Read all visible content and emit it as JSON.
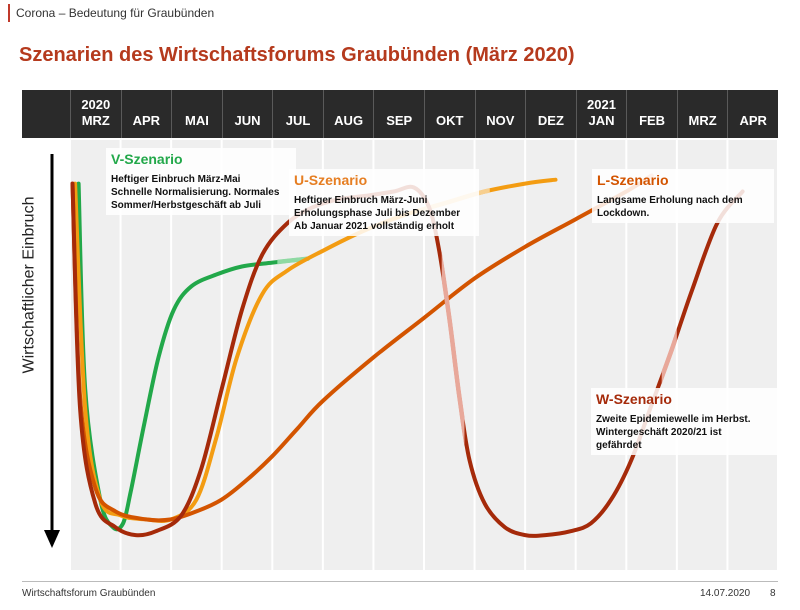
{
  "header": {
    "section": "Corona – Bedeutung für Graubünden"
  },
  "title": "Szenarien des Wirtschaftsforums Graubünden (März 2020)",
  "footer": {
    "org": "Wirtschaftsforum Graubünden",
    "date": "14.07.2020",
    "page": "8"
  },
  "chart_data": {
    "type": "line",
    "title": "Szenarien des Wirtschaftsforums Graubünden (März 2020)",
    "xlabel": "",
    "ylabel": "Wirtschaftlicher Einbruch",
    "y_direction": "down = stronger economic slump (qualitative, no numeric axis)",
    "categories": [
      {
        "year": "2020",
        "month": "MRZ"
      },
      {
        "year": "",
        "month": "APR"
      },
      {
        "year": "",
        "month": "MAI"
      },
      {
        "year": "",
        "month": "JUN"
      },
      {
        "year": "",
        "month": "JUL"
      },
      {
        "year": "",
        "month": "AUG"
      },
      {
        "year": "",
        "month": "SEP"
      },
      {
        "year": "",
        "month": "OKT"
      },
      {
        "year": "",
        "month": "NOV"
      },
      {
        "year": "",
        "month": "DEZ"
      },
      {
        "year": "2021",
        "month": "JAN"
      },
      {
        "year": "",
        "month": "FEB"
      },
      {
        "year": "",
        "month": "MRZ"
      },
      {
        "year": "",
        "month": "APR"
      }
    ],
    "grid": true,
    "series": [
      {
        "name": "V-Szenario",
        "color": "#22a84a",
        "faded_color": "#8fd9a3",
        "faded_from_x": 4.1,
        "points": [
          [
            0.17,
            8
          ],
          [
            0.3,
            60
          ],
          [
            0.6,
            88
          ],
          [
            0.85,
            95
          ],
          [
            1.05,
            94
          ],
          [
            1.2,
            86
          ],
          [
            1.45,
            70
          ],
          [
            1.75,
            52
          ],
          [
            2.05,
            40
          ],
          [
            2.4,
            34
          ],
          [
            2.9,
            31
          ],
          [
            3.4,
            29
          ],
          [
            4.0,
            28
          ],
          [
            4.7,
            27
          ]
        ]
      },
      {
        "name": "U-Szenario",
        "color": "#f39c12",
        "faded_color": "#f7cf8f",
        "faded_from_x": 6.9,
        "faded_until_x": 8.3,
        "points": [
          [
            0.1,
            8
          ],
          [
            0.3,
            65
          ],
          [
            0.6,
            88
          ],
          [
            1.0,
            92
          ],
          [
            1.5,
            93
          ],
          [
            2.0,
            93
          ],
          [
            2.5,
            88
          ],
          [
            2.9,
            72
          ],
          [
            3.3,
            52
          ],
          [
            3.8,
            36
          ],
          [
            4.3,
            30
          ],
          [
            5.0,
            25
          ],
          [
            5.8,
            20
          ],
          [
            6.6,
            16
          ],
          [
            7.4,
            13
          ],
          [
            8.2,
            10
          ],
          [
            9.0,
            8
          ],
          [
            9.6,
            7
          ]
        ]
      },
      {
        "name": "L-Szenario",
        "color": "#d35400",
        "faded_color": "#f0a27a",
        "faded_from_x": 11.35,
        "points": [
          [
            0.05,
            8
          ],
          [
            0.2,
            62
          ],
          [
            0.5,
            85
          ],
          [
            0.9,
            91
          ],
          [
            1.5,
            93
          ],
          [
            2.0,
            93
          ],
          [
            2.5,
            91
          ],
          [
            3.0,
            88
          ],
          [
            3.5,
            83
          ],
          [
            4.0,
            77
          ],
          [
            4.5,
            70
          ],
          [
            5.0,
            63
          ],
          [
            6.0,
            52
          ],
          [
            7.0,
            42
          ],
          [
            8.0,
            32
          ],
          [
            9.0,
            24
          ],
          [
            10.0,
            17
          ],
          [
            11.0,
            10
          ],
          [
            11.5,
            6
          ]
        ]
      },
      {
        "name": "W-Szenario",
        "color": "#a52a0a",
        "faded_color": "#e8a89a",
        "faded_from_x": 7.35,
        "faded_until_x": 7.8,
        "faded_from_x2": 11.7,
        "faded_until_x2": 12.0,
        "points": [
          [
            0.05,
            8
          ],
          [
            0.2,
            65
          ],
          [
            0.5,
            89
          ],
          [
            0.9,
            95
          ],
          [
            1.3,
            97
          ],
          [
            1.7,
            96
          ],
          [
            2.2,
            92
          ],
          [
            2.6,
            80
          ],
          [
            3.0,
            60
          ],
          [
            3.4,
            40
          ],
          [
            3.8,
            26
          ],
          [
            4.3,
            18
          ],
          [
            4.8,
            14
          ],
          [
            5.3,
            12
          ],
          [
            5.9,
            11
          ],
          [
            6.4,
            10
          ],
          [
            6.8,
            9
          ],
          [
            7.1,
            14
          ],
          [
            7.3,
            25
          ],
          [
            7.5,
            42
          ],
          [
            7.7,
            62
          ],
          [
            7.9,
            78
          ],
          [
            8.2,
            89
          ],
          [
            8.6,
            95
          ],
          [
            9.0,
            97
          ],
          [
            9.4,
            97
          ],
          [
            9.9,
            96
          ],
          [
            10.3,
            94
          ],
          [
            10.7,
            88
          ],
          [
            11.1,
            78
          ],
          [
            11.5,
            64
          ],
          [
            11.9,
            50
          ],
          [
            12.3,
            35
          ],
          [
            12.8,
            18
          ],
          [
            13.3,
            10
          ]
        ]
      }
    ],
    "annotations": [
      {
        "series": "V-Szenario",
        "title": "V-Szenario",
        "color": "#22a84a",
        "lines": [
          "Heftiger Einbruch März-Mai",
          "Schnelle Normalisierung. Normales",
          "Sommer/Herbstgeschäft ab Juli"
        ]
      },
      {
        "series": "U-Szenario",
        "title": "U-Szenario",
        "color": "#e67e22",
        "lines": [
          "Heftiger Einbruch März-Juni",
          "Erholungsphase Juli bis Dezember",
          "Ab Januar 2021 vollständig erholt"
        ]
      },
      {
        "series": "L-Szenario",
        "title": "L-Szenario",
        "color": "#d35400",
        "lines": [
          "Langsame Erholung nach dem",
          "Lockdown."
        ]
      },
      {
        "series": "W-Szenario",
        "title": "W-Szenario",
        "color": "#a52a0a",
        "lines": [
          "Zweite Epidemiewelle im Herbst.",
          "Wintergeschäft 2020/21 ist",
          "gefährdet"
        ]
      }
    ]
  }
}
